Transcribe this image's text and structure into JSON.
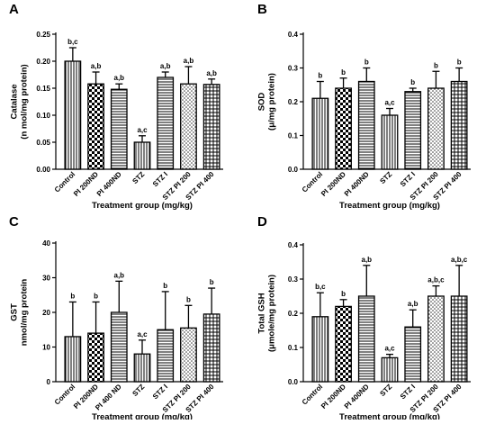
{
  "chart_data": [
    {
      "type": "bar",
      "panel": "A",
      "ylabel": [
        "Catalase",
        "(n mol/mg protein)"
      ],
      "xlabel": "Treatment group (mg/kg)",
      "categories": [
        "Control",
        "PI 200ND",
        "PI 400ND",
        "STZ",
        "STZ I",
        "STZ PI 200",
        "STZ PI 400"
      ],
      "values": [
        0.2,
        0.158,
        0.148,
        0.05,
        0.17,
        0.158,
        0.157
      ],
      "errors": [
        0.025,
        0.022,
        0.01,
        0.012,
        0.01,
        0.032,
        0.01
      ],
      "annotations": [
        "b,c",
        "a,b",
        "a,b",
        "a,c",
        "a,b",
        "a,b",
        "a,b"
      ],
      "patterns": [
        "vlines",
        "checker",
        "hlines",
        "vlines",
        "hlines",
        "dots",
        "grid"
      ],
      "ylim": [
        0,
        0.25
      ],
      "yticks": [
        "0.00",
        "0.05",
        "0.10",
        "0.15",
        "0.20",
        "0.25"
      ]
    },
    {
      "type": "bar",
      "panel": "B",
      "ylabel": [
        "SOD",
        "(μ/mg protein)"
      ],
      "xlabel": "Treatment group (mg/kg)",
      "categories": [
        "Control",
        "PI 200ND",
        "PI 400ND",
        "STZ",
        "STZ I",
        "STZ PI 200",
        "STZ PI 400"
      ],
      "values": [
        0.21,
        0.24,
        0.26,
        0.16,
        0.23,
        0.24,
        0.26
      ],
      "errors": [
        0.05,
        0.03,
        0.04,
        0.02,
        0.01,
        0.05,
        0.04
      ],
      "annotations": [
        "b",
        "b",
        "b",
        "a,c",
        "b",
        "b",
        "b"
      ],
      "patterns": [
        "vlines",
        "checker",
        "hlines",
        "vlines",
        "hlines",
        "dots",
        "grid"
      ],
      "ylim": [
        0,
        0.4
      ],
      "yticks": [
        "0.0",
        "0.1",
        "0.2",
        "0.3",
        "0.4"
      ]
    },
    {
      "type": "bar",
      "panel": "C",
      "ylabel": [
        "GST",
        "nmol/mg protein"
      ],
      "xlabel": "Treatment group (mg/kg)",
      "categories": [
        "Control",
        "PI 200ND",
        "PI 400 ND",
        "STZ",
        "STZ I",
        "STZ PI 200",
        "STZ PI 400"
      ],
      "values": [
        13,
        14,
        20,
        8,
        15,
        15.5,
        19.5
      ],
      "errors": [
        10,
        9,
        9,
        4,
        11,
        6.5,
        7.5
      ],
      "annotations": [
        "b",
        "b",
        "a,b",
        "a,c",
        "b",
        "b",
        "b"
      ],
      "patterns": [
        "vlines",
        "checker",
        "hlines",
        "vlines",
        "hlines",
        "dots",
        "grid"
      ],
      "ylim": [
        0,
        40
      ],
      "yticks": [
        "0",
        "10",
        "20",
        "30",
        "40"
      ]
    },
    {
      "type": "bar",
      "panel": "D",
      "ylabel": [
        "Total GSH",
        "(μmole/mg protein)"
      ],
      "xlabel": "Treatment group (mg/kg)",
      "categories": [
        "Control",
        "PI 200ND",
        "PI 400ND",
        "STZ",
        "STZ I",
        "STZ PI 200",
        "STZ PI 400"
      ],
      "values": [
        0.19,
        0.22,
        0.25,
        0.07,
        0.16,
        0.25,
        0.25
      ],
      "errors": [
        0.07,
        0.02,
        0.09,
        0.01,
        0.05,
        0.03,
        0.09
      ],
      "annotations": [
        "b,c",
        "b",
        "a,b",
        "a,c",
        "a,b",
        "a,b,c",
        "a,b,c"
      ],
      "patterns": [
        "vlines",
        "checker",
        "hlines",
        "vlines",
        "hlines",
        "dots",
        "grid"
      ],
      "ylim": [
        0,
        0.4
      ],
      "yticks": [
        "0.0",
        "0.1",
        "0.2",
        "0.3",
        "0.4"
      ]
    }
  ]
}
